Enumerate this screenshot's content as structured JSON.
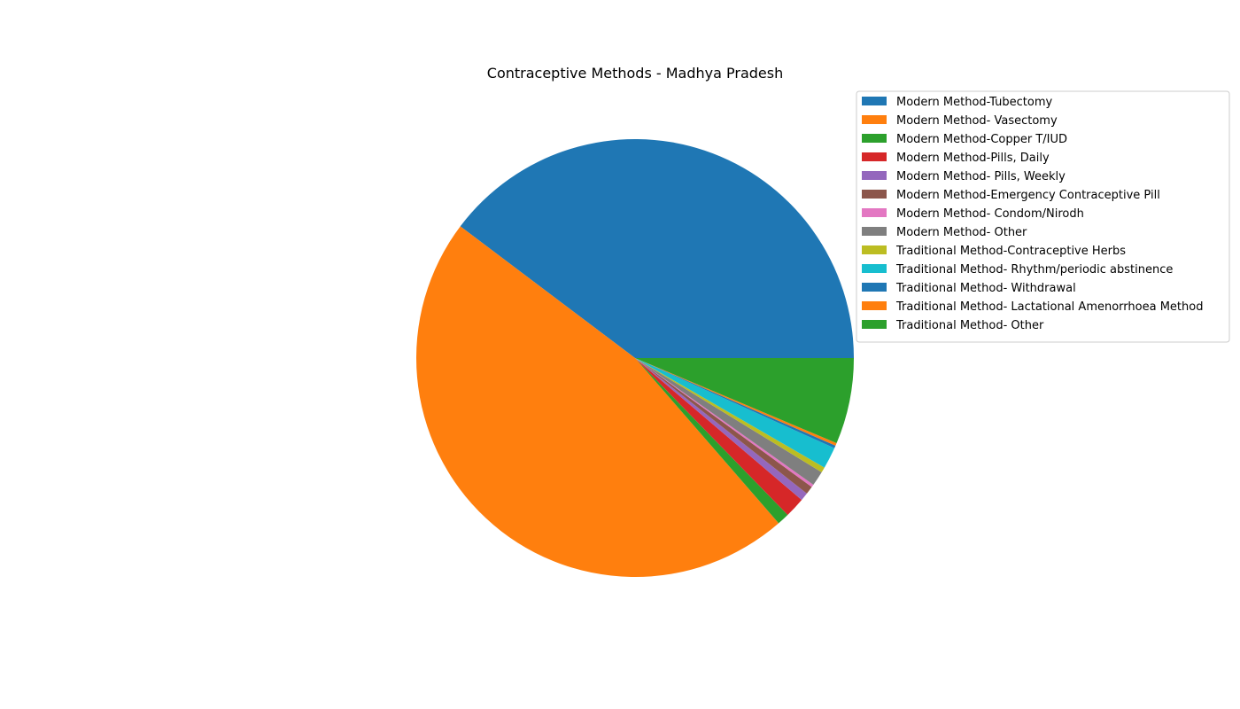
{
  "chart_data": {
    "type": "pie",
    "title": "Contraceptive Methods - Madhya Pradesh",
    "start_angle_deg": 0,
    "direction": "counterclockwise",
    "legend_position": "upper-right",
    "slices": [
      {
        "label": "Modern Method-Tubectomy",
        "value": 40.0,
        "color": "#1f77b4"
      },
      {
        "label": "Modern Method- Vasectomy",
        "value": 47.0,
        "color": "#ff7f0e"
      },
      {
        "label": "Modern Method-Copper T/IUD",
        "value": 0.9,
        "color": "#2ca02c"
      },
      {
        "label": "Modern Method-Pills, Daily",
        "value": 1.5,
        "color": "#d62728"
      },
      {
        "label": "Modern Method- Pills, Weekly",
        "value": 0.6,
        "color": "#9467bd"
      },
      {
        "label": "Modern Method-Emergency Contraceptive Pill",
        "value": 0.6,
        "color": "#8c564b"
      },
      {
        "label": "Modern Method- Condom/Nirodh",
        "value": 0.2,
        "color": "#e377c2"
      },
      {
        "label": "Modern Method- Other",
        "value": 1.1,
        "color": "#7f7f7f"
      },
      {
        "label": "Traditional Method-Contraceptive Herbs",
        "value": 0.4,
        "color": "#bcbd22"
      },
      {
        "label": "Traditional Method- Rhythm/periodic abstinence",
        "value": 1.6,
        "color": "#17becf"
      },
      {
        "label": "Traditional Method- Withdrawal",
        "value": 0.2,
        "color": "#1f77b4"
      },
      {
        "label": "Traditional Method- Lactational Amenorrhoea Method",
        "value": 0.2,
        "color": "#ff7f0e"
      },
      {
        "label": "Traditional Method- Other",
        "value": 6.4,
        "color": "#2ca02c"
      }
    ]
  }
}
